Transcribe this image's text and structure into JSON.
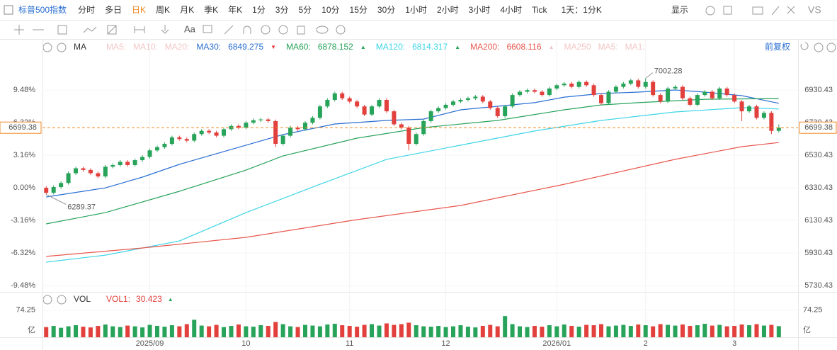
{
  "toolbar": {
    "symbol": "标普500指数",
    "periods": [
      "分时",
      "多日",
      "日K",
      "周K",
      "月K",
      "季K",
      "年K",
      "1分",
      "3分",
      "5分",
      "10分",
      "15分",
      "30分",
      "1小时",
      "2小时",
      "3小时",
      "4小时",
      "Tick"
    ],
    "active_period": 2,
    "interval": "1天：1分K",
    "display": "显示",
    "vs": "VS",
    "text_tool": "Aa"
  },
  "chart_data": {
    "type": "candlestick",
    "indicator": "MA",
    "adjust": "前复权",
    "faded_before": [
      "MA5:",
      "MA10:",
      "MA20:"
    ],
    "faded_after": [
      "MA250",
      "MA5:",
      "MA1:"
    ],
    "up_color": "#27a35a",
    "down_color": "#e2403d",
    "open": [
      6330,
      6300,
      6335,
      6360,
      6420,
      6450,
      6440,
      6420,
      6400,
      6460,
      6470,
      6490,
      6470,
      6500,
      6520,
      6560,
      6580,
      6600,
      6640,
      6630,
      6620,
      6660,
      6680,
      6670,
      6650,
      6690,
      6710,
      6700,
      6730,
      6745,
      6750,
      6740,
      6600,
      6650,
      6700,
      6690,
      6730,
      6760,
      6830,
      6870,
      6910,
      6880,
      6860,
      6830,
      6780,
      6830,
      6870,
      6800,
      6720,
      6700,
      6600,
      6660,
      6740,
      6800,
      6820,
      6840,
      6860,
      6870,
      6880,
      6890,
      6860,
      6820,
      6770,
      6830,
      6900,
      6920,
      6930,
      6920,
      6900,
      6940,
      6960,
      6970,
      6950,
      6980,
      6960,
      6900,
      6850,
      6920,
      6950,
      6970,
      6990,
      6950,
      6980,
      6900,
      6860,
      6940,
      6950,
      6880,
      6840,
      6900,
      6920,
      6880,
      6940,
      6900,
      6860,
      6800,
      6830,
      6760,
      6790,
      6680
    ],
    "high": [
      6340,
      6345,
      6370,
      6430,
      6460,
      6460,
      6450,
      6430,
      6470,
      6480,
      6500,
      6500,
      6510,
      6530,
      6570,
      6590,
      6610,
      6650,
      6650,
      6640,
      6670,
      6690,
      6690,
      6680,
      6700,
      6720,
      6720,
      6740,
      6755,
      6760,
      6760,
      6750,
      6660,
      6710,
      6710,
      6740,
      6770,
      6840,
      6880,
      6920,
      6920,
      6890,
      6870,
      6840,
      6840,
      6880,
      6880,
      6810,
      6730,
      6710,
      6670,
      6750,
      6810,
      6830,
      6850,
      6870,
      6880,
      6890,
      6900,
      6900,
      6870,
      6830,
      6840,
      6910,
      6930,
      6940,
      6940,
      6930,
      6950,
      6970,
      6980,
      6980,
      6990,
      6990,
      6970,
      6910,
      6930,
      6960,
      6980,
      7000,
      7000,
      7002.28,
      6990,
      6910,
      6950,
      6960,
      6960,
      6890,
      6910,
      6930,
      6930,
      6950,
      6950,
      6910,
      6870,
      6840,
      6840,
      6800,
      6800,
      6720
    ],
    "low": [
      6289.37,
      6290,
      6325,
      6350,
      6410,
      6430,
      6410,
      6390,
      6390,
      6450,
      6460,
      6460,
      6460,
      6490,
      6510,
      6550,
      6570,
      6590,
      6620,
      6610,
      6610,
      6650,
      6660,
      6640,
      6640,
      6680,
      6690,
      6690,
      6720,
      6735,
      6730,
      6580,
      6590,
      6640,
      6680,
      6680,
      6720,
      6750,
      6820,
      6860,
      6870,
      6850,
      6820,
      6770,
      6770,
      6820,
      6790,
      6710,
      6690,
      6560,
      6590,
      6650,
      6730,
      6790,
      6810,
      6830,
      6850,
      6860,
      6870,
      6850,
      6810,
      6760,
      6760,
      6820,
      6890,
      6910,
      6910,
      6890,
      6890,
      6930,
      6950,
      6940,
      6940,
      6950,
      6890,
      6840,
      6840,
      6910,
      6940,
      6960,
      6940,
      6940,
      6890,
      6850,
      6850,
      6930,
      6870,
      6830,
      6830,
      6890,
      6870,
      6870,
      6890,
      6850,
      6740,
      6790,
      6750,
      6750,
      6660,
      6670
    ],
    "close": [
      6300,
      6335,
      6360,
      6420,
      6450,
      6440,
      6420,
      6400,
      6460,
      6470,
      6490,
      6470,
      6500,
      6520,
      6560,
      6580,
      6600,
      6640,
      6630,
      6620,
      6660,
      6680,
      6670,
      6650,
      6690,
      6710,
      6700,
      6730,
      6745,
      6750,
      6740,
      6600,
      6650,
      6700,
      6690,
      6730,
      6760,
      6830,
      6870,
      6910,
      6880,
      6860,
      6830,
      6780,
      6830,
      6870,
      6800,
      6720,
      6700,
      6600,
      6660,
      6740,
      6800,
      6820,
      6840,
      6860,
      6870,
      6880,
      6890,
      6860,
      6820,
      6770,
      6830,
      6900,
      6920,
      6930,
      6920,
      6900,
      6940,
      6960,
      6970,
      6950,
      6980,
      6960,
      6900,
      6850,
      6920,
      6950,
      6970,
      6990,
      6950,
      6980,
      6900,
      6860,
      6940,
      6950,
      6880,
      6840,
      6900,
      6920,
      6880,
      6940,
      6900,
      6860,
      6800,
      6830,
      6760,
      6790,
      6680,
      6699.38
    ],
    "series": [
      {
        "name": "MA30:",
        "color": "#2a6fd2",
        "trend": "▼",
        "trend_color": "#e2403d",
        "x": [
          0,
          8,
          13,
          18,
          27,
          32,
          39,
          46,
          51,
          56,
          61,
          66,
          70,
          75,
          80,
          85,
          89,
          94,
          99
        ],
        "values": [
          6274,
          6330,
          6396,
          6474,
          6592,
          6657,
          6722,
          6744,
          6752,
          6809,
          6831,
          6853,
          6887,
          6909,
          6918,
          6931,
          6918,
          6896,
          6849.275
        ]
      },
      {
        "name": "MA60:",
        "color": "#27a35a",
        "trend": "▲",
        "trend_color": "#27a35a",
        "x": [
          0,
          8,
          18,
          27,
          32,
          42,
          51,
          61,
          70,
          75,
          80,
          89,
          99
        ],
        "values": [
          6109,
          6178,
          6309,
          6439,
          6526,
          6635,
          6700,
          6744,
          6809,
          6839,
          6853,
          6874,
          6878.152
        ]
      },
      {
        "name": "MA120:",
        "color": "#3dd5e6",
        "trend": "▲",
        "trend_color": "#27a35a",
        "x": [
          0,
          8,
          18,
          27,
          37,
          46,
          56,
          66,
          75,
          85,
          94,
          99
        ],
        "values": [
          5874,
          5917,
          6004,
          6178,
          6352,
          6505,
          6592,
          6679,
          6744,
          6796,
          6822,
          6814.317
        ]
      },
      {
        "name": "MA200:",
        "color": "#e8574d",
        "trend": "▲",
        "trend_color": "#f3c6c6",
        "x": [
          0,
          13,
          27,
          42,
          56,
          70,
          85,
          94,
          99
        ],
        "values": [
          5909,
          5961,
          6026,
          6135,
          6222,
          6352,
          6505,
          6583,
          6608.116
        ]
      }
    ],
    "xlim": [
      -0.5,
      101.6
    ],
    "ylim": [
      5700,
      7144
    ],
    "yticks": [
      6930.43,
      6730.43,
      6530.43,
      6330.43,
      6130.43,
      5930.43,
      5730.43
    ],
    "pct_ticks": [
      {
        "value": 6930.43,
        "label": "9.48%"
      },
      {
        "value": 6730.43,
        "label": "6.32%"
      },
      {
        "value": 6530.43,
        "label": "3.16%"
      },
      {
        "value": 6330.43,
        "label": "0.00%"
      },
      {
        "value": 6130.43,
        "label": "-3.16%"
      },
      {
        "value": 5930.43,
        "label": "-6.32%"
      },
      {
        "value": 5730.43,
        "label": "-9.48%"
      }
    ],
    "xticks": [
      {
        "value": 14,
        "label": "2025/09"
      },
      {
        "value": 27,
        "label": "10"
      },
      {
        "value": 41,
        "label": "11"
      },
      {
        "value": 54,
        "label": "12"
      },
      {
        "value": 69,
        "label": "2026/01"
      },
      {
        "value": 81,
        "label": "2"
      },
      {
        "value": 93,
        "label": "3"
      }
    ],
    "max_index": 81,
    "min_index": 0,
    "volume": {
      "label": "VOL",
      "series_name": "VOL1:",
      "trend": "▲",
      "unit": "亿",
      "ylim": [
        0,
        83.6
      ],
      "yticks": [
        74.25
      ],
      "values": [
        28,
        31,
        26,
        30,
        33,
        29,
        27,
        31,
        35,
        30,
        28,
        32,
        30,
        27,
        34,
        31,
        29,
        33,
        30,
        36,
        48,
        32,
        30,
        34,
        28,
        31,
        35,
        30,
        29,
        33,
        31,
        42,
        36,
        30,
        28,
        34,
        32,
        30,
        35,
        37,
        33,
        31,
        29,
        34,
        36,
        32,
        38,
        34,
        36,
        40,
        33,
        30,
        29,
        31,
        28,
        30,
        33,
        29,
        27,
        31,
        34,
        30,
        58,
        36,
        30,
        28,
        31,
        29,
        33,
        30,
        35,
        31,
        29,
        34,
        33,
        36,
        30,
        32,
        34,
        31,
        35,
        33,
        30,
        36,
        34,
        32,
        35,
        31,
        33,
        37,
        32,
        34,
        30,
        31,
        35,
        33,
        36,
        32,
        34,
        30.423
      ]
    }
  }
}
